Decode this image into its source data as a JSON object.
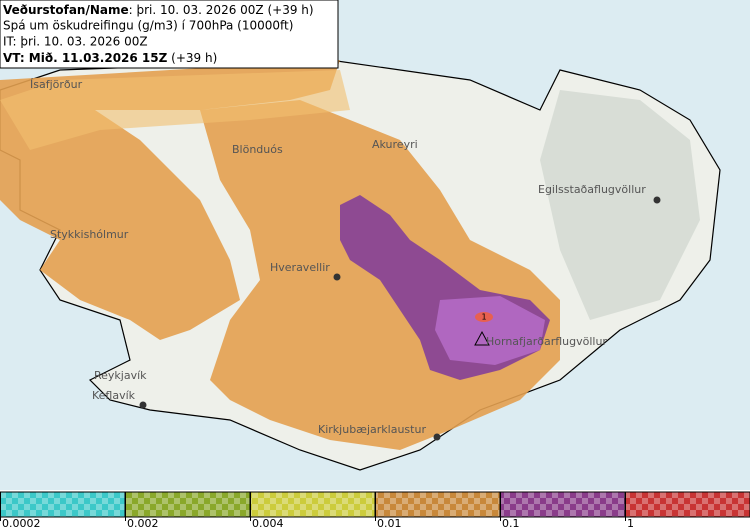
{
  "header": {
    "line1_bold": "Veðurstofan/Name",
    "line1_rest": ": þri. 10. 03. 2026 00Z (+39 h)",
    "line2": "Spá um öskudreifingu (g/m3) í 700hPa (10000ft)",
    "line3": "IT: þri. 10. 03. 2026 00Z",
    "line4_bold": "VT: Mið. 11.03.2026 15Z",
    "line4_rest": " (+39 h)"
  },
  "places": [
    "Ísafjörður",
    "Blönduós",
    "Akureyri",
    "Egilsstaðaflugvöllur",
    "Stykkishólmur",
    "Hveravellir",
    "Hornafjarðarflugvöllur",
    "Reykjavík",
    "Keflavík",
    "Kirkjubæjarklaustur"
  ],
  "volcano_label": "1",
  "legend": {
    "labels": [
      "0.0002",
      "0.002",
      "0.004",
      "0.01",
      "0.1",
      "1"
    ],
    "colors": [
      "#3cc8c8",
      "#8aa82a",
      "#cccc3c",
      "#c8883a",
      "#8a3c8a",
      "#c83434"
    ]
  }
}
